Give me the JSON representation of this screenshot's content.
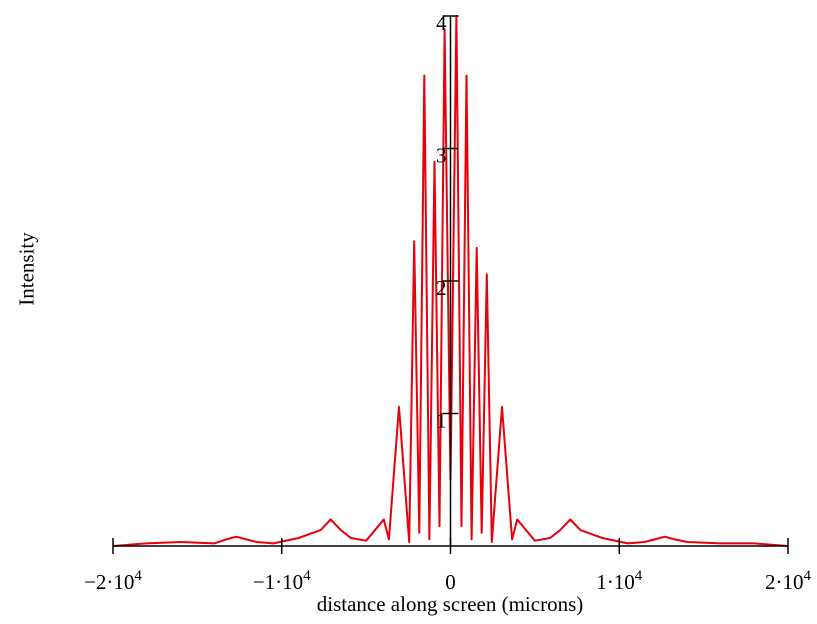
{
  "chart_data": {
    "type": "line",
    "title": "",
    "xlabel": "distance along screen (microns)",
    "ylabel": "Intensity",
    "xlim": [
      -20000,
      20000
    ],
    "ylim": [
      0,
      4
    ],
    "x_ticks": [
      {
        "value": -20000,
        "mantissa": "−2",
        "exp": "4"
      },
      {
        "value": -10000,
        "mantissa": "−1",
        "exp": "4"
      },
      {
        "value": 0,
        "mantissa": "0",
        "exp": ""
      },
      {
        "value": 10000,
        "mantissa": "1",
        "exp": "4"
      },
      {
        "value": 20000,
        "mantissa": "2",
        "exp": "4"
      }
    ],
    "y_ticks": [
      1,
      2,
      3,
      4
    ],
    "grid": false,
    "legend": "none",
    "series": [
      {
        "color": "#e8000b",
        "x": [
          -20000,
          -18000,
          -16000,
          -14000,
          -13300,
          -12700,
          -12100,
          -11500,
          -10500,
          -9000,
          -7700,
          -7100,
          -6500,
          -5900,
          -5000,
          -3950,
          -3650,
          -3050,
          -2450,
          -2150,
          -1850,
          -1550,
          -1250,
          -950,
          -650,
          -350,
          0,
          350,
          650,
          950,
          1250,
          1550,
          1850,
          2150,
          2450,
          3050,
          3650,
          3950,
          5000,
          5900,
          6500,
          7100,
          7700,
          9000,
          10500,
          11500,
          12100,
          12700,
          13300,
          14000,
          16000,
          18000,
          20000
        ],
        "y": [
          0,
          0.02,
          0.03,
          0.02,
          0.05,
          0.07,
          0.05,
          0.03,
          0.02,
          0.06,
          0.12,
          0.2,
          0.12,
          0.06,
          0.04,
          0.2,
          0.05,
          1.05,
          0.03,
          2.3,
          0.1,
          3.55,
          0.05,
          2.9,
          0.15,
          3.9,
          0.5,
          4.0,
          0.15,
          3.55,
          0.05,
          2.25,
          0.1,
          2.05,
          0.03,
          1.05,
          0.05,
          0.2,
          0.04,
          0.06,
          0.12,
          0.2,
          0.12,
          0.06,
          0.02,
          0.03,
          0.05,
          0.07,
          0.05,
          0.03,
          0.02,
          0.02,
          0
        ]
      }
    ]
  }
}
